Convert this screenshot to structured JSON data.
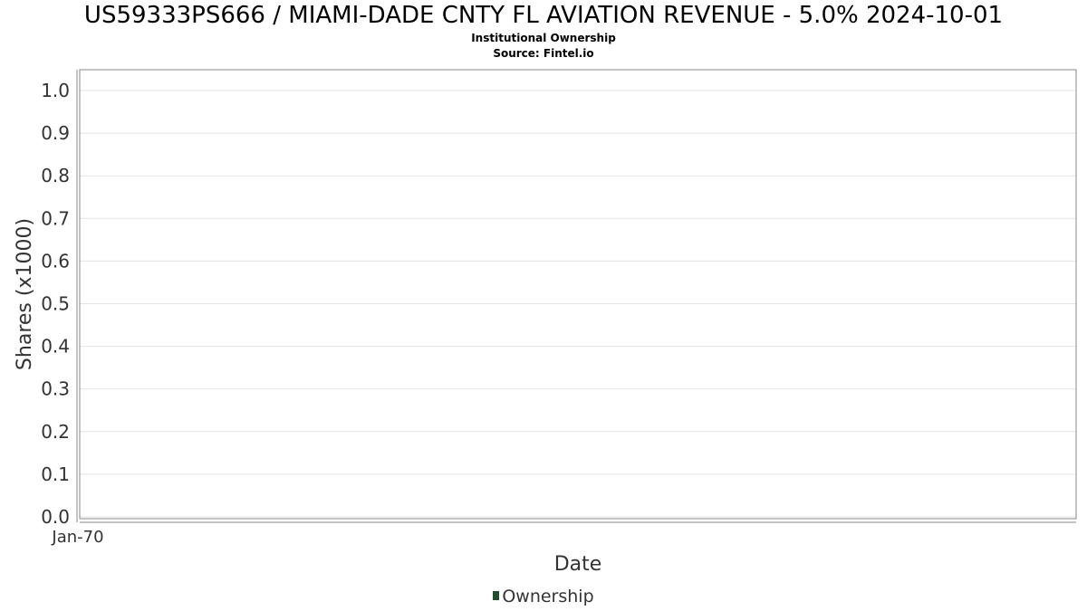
{
  "chart_data": {
    "type": "bar",
    "title": "US59333PS666 / MIAMI-DADE CNTY FL AVIATION REVENUE - 5.0% 2024-10-01",
    "subtitle_lines": [
      "Institutional Ownership",
      "Source: Fintel.io"
    ],
    "xlabel": "Date",
    "ylabel": "Shares (x1000)",
    "x_tick_labels": [
      "Jan-70"
    ],
    "y_ticks": [
      0.0,
      0.1,
      0.2,
      0.3,
      0.4,
      0.5,
      0.6,
      0.7,
      0.8,
      0.9,
      1.0
    ],
    "y_tick_labels": [
      "0.0",
      "0.1",
      "0.2",
      "0.3",
      "0.4",
      "0.5",
      "0.6",
      "0.7",
      "0.8",
      "0.9",
      "1.0"
    ],
    "ylim": [
      0,
      1.05
    ],
    "grid": true,
    "legend_position": "bottom",
    "series": [
      {
        "name": "Ownership",
        "color": "#1f4e2c",
        "values": []
      }
    ]
  }
}
